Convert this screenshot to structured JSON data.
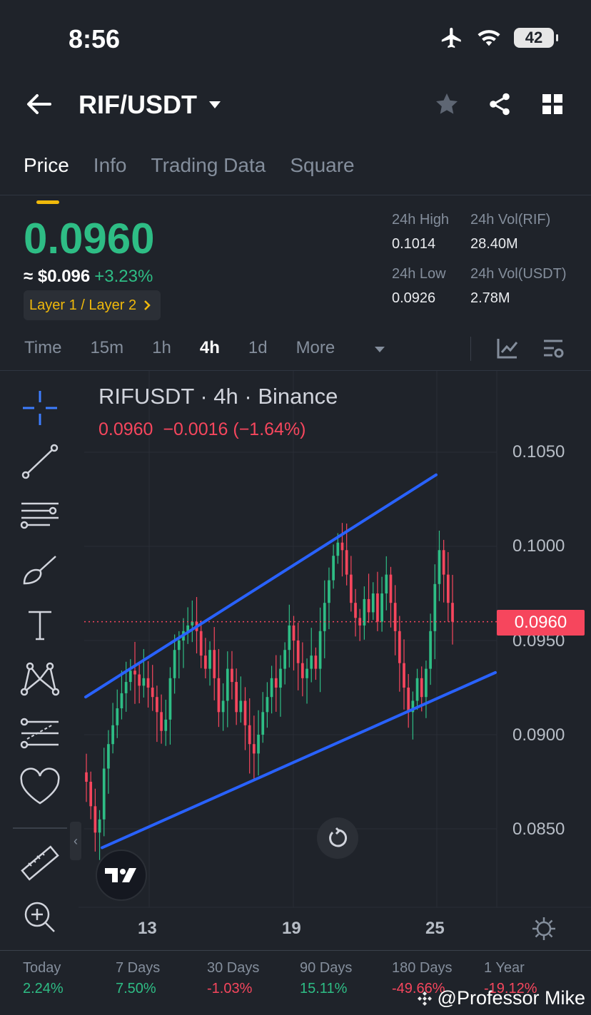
{
  "status": {
    "time": "8:56",
    "battery": "42"
  },
  "header": {
    "pair": "RIF/USDT"
  },
  "tabs": [
    "Price",
    "Info",
    "Trading Data",
    "Square"
  ],
  "ticker": {
    "last": "0.0960",
    "usd": "≈ $0.096",
    "change": "+3.23%",
    "tag": "Layer 1 / Layer 2",
    "high_label": "24h High",
    "high": "0.1014",
    "low_label": "24h Low",
    "low": "0.0926",
    "vol_base_label": "24h Vol(RIF)",
    "vol_base": "28.40M",
    "vol_quote_label": "24h Vol(USDT)",
    "vol_quote": "2.78M"
  },
  "intervals": [
    "Time",
    "15m",
    "1h",
    "4h",
    "1d",
    "More"
  ],
  "chart": {
    "title": "RIFUSDT · 4h · Binance",
    "legend": "0.0960  −0.0016 (−1.64%)",
    "price_tag": "0.0960",
    "y_labels": [
      "0.1050",
      "0.1000",
      "0.0950",
      "0.0900",
      "0.0850"
    ],
    "x_labels": [
      "13",
      "19",
      "25"
    ]
  },
  "chart_data": {
    "type": "candlestick",
    "title": "RIFUSDT · 4h · Binance",
    "ylim": [
      0.0835,
      0.1065
    ],
    "y_ticks": [
      0.105,
      0.1,
      0.095,
      0.09,
      0.085
    ],
    "x_ticks": [
      "13",
      "19",
      "25"
    ],
    "last_price": 0.096,
    "closes": [
      0.0875,
      0.0862,
      0.0848,
      0.0855,
      0.0882,
      0.0895,
      0.0905,
      0.0914,
      0.0922,
      0.0928,
      0.0934,
      0.0932,
      0.0926,
      0.093,
      0.0925,
      0.092,
      0.0912,
      0.0902,
      0.0908,
      0.093,
      0.0945,
      0.095,
      0.0955,
      0.0958,
      0.096,
      0.0955,
      0.0942,
      0.0935,
      0.0945,
      0.093,
      0.0912,
      0.0918,
      0.0935,
      0.0928,
      0.0912,
      0.0918,
      0.0905,
      0.0895,
      0.089,
      0.09,
      0.0912,
      0.092,
      0.093,
      0.0925,
      0.0935,
      0.0945,
      0.0958,
      0.095,
      0.0938,
      0.093,
      0.0935,
      0.0942,
      0.0935,
      0.0955,
      0.097,
      0.0982,
      0.0995,
      0.1002,
      0.0998,
      0.0985,
      0.097,
      0.0962,
      0.0958,
      0.0972,
      0.0965,
      0.0975,
      0.096,
      0.0975,
      0.0985,
      0.097,
      0.0955,
      0.0938,
      0.0925,
      0.0912,
      0.0918,
      0.093,
      0.092,
      0.0935,
      0.0955,
      0.098,
      0.0998,
      0.0985,
      0.097,
      0.096
    ],
    "channel": {
      "upper": [
        [
          0.092,
          0.1038
        ]
      ],
      "lower": [
        [
          0.084,
          0.0933
        ]
      ]
    },
    "performance": [
      {
        "label": "Today",
        "value": "2.24%"
      },
      {
        "label": "7 Days",
        "value": "7.50%"
      },
      {
        "label": "30 Days",
        "value": "-1.03%"
      },
      {
        "label": "90 Days",
        "value": "15.11%"
      },
      {
        "label": "180 Days",
        "value": "-49.66%"
      },
      {
        "label": "1 Year",
        "value": "-19.12%"
      }
    ]
  },
  "watermark": "@Professor Mike"
}
